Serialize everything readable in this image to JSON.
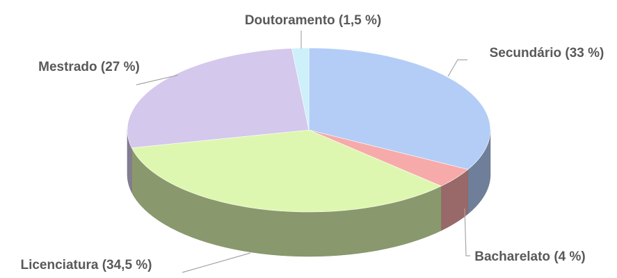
{
  "chart_data": {
    "type": "pie",
    "categories": [
      "Secundário",
      "Bacharelato",
      "Licenciatura",
      "Mestrado",
      "Doutoramento"
    ],
    "values": [
      33,
      4,
      34.5,
      27,
      1.5
    ],
    "value_labels": [
      "(33 %)",
      "(4 %)",
      "(34,5 %)",
      "(27 %)",
      "(1,5 %)"
    ],
    "colors": [
      "#b3cdf7",
      "#f7aaaa",
      "#def7b0",
      "#d4c8ec",
      "#cdf0fb"
    ]
  }
}
